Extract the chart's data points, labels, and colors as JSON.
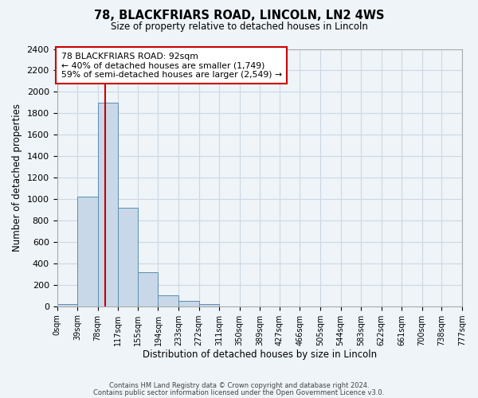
{
  "title": "78, BLACKFRIARS ROAD, LINCOLN, LN2 4WS",
  "subtitle": "Size of property relative to detached houses in Lincoln",
  "xlabel": "Distribution of detached houses by size in Lincoln",
  "ylabel": "Number of detached properties",
  "bar_edges": [
    0,
    39,
    78,
    117,
    155,
    194,
    233,
    272,
    311,
    350,
    389,
    427,
    466,
    505,
    544,
    583,
    622,
    661,
    700,
    738,
    777
  ],
  "bar_heights": [
    20,
    1020,
    1900,
    920,
    315,
    105,
    47,
    20,
    0,
    0,
    0,
    0,
    0,
    0,
    0,
    0,
    0,
    0,
    0,
    0
  ],
  "bar_color": "#c8d8e8",
  "bar_edge_color": "#5b8db0",
  "vline_x": 92,
  "vline_color": "#cc0000",
  "ylim": [
    0,
    2400
  ],
  "yticks": [
    0,
    200,
    400,
    600,
    800,
    1000,
    1200,
    1400,
    1600,
    1800,
    2000,
    2200,
    2400
  ],
  "xtick_labels": [
    "0sqm",
    "39sqm",
    "78sqm",
    "117sqm",
    "155sqm",
    "194sqm",
    "233sqm",
    "272sqm",
    "311sqm",
    "350sqm",
    "389sqm",
    "427sqm",
    "466sqm",
    "505sqm",
    "544sqm",
    "583sqm",
    "622sqm",
    "661sqm",
    "700sqm",
    "738sqm",
    "777sqm"
  ],
  "annotation_title": "78 BLACKFRIARS ROAD: 92sqm",
  "annotation_line1": "← 40% of detached houses are smaller (1,749)",
  "annotation_line2": "59% of semi-detached houses are larger (2,549) →",
  "annotation_box_color": "#ffffff",
  "annotation_box_edge": "#cc0000",
  "grid_color": "#ccd8e4",
  "background_color": "#eef4f8",
  "footer_line1": "Contains HM Land Registry data © Crown copyright and database right 2024.",
  "footer_line2": "Contains public sector information licensed under the Open Government Licence v3.0."
}
